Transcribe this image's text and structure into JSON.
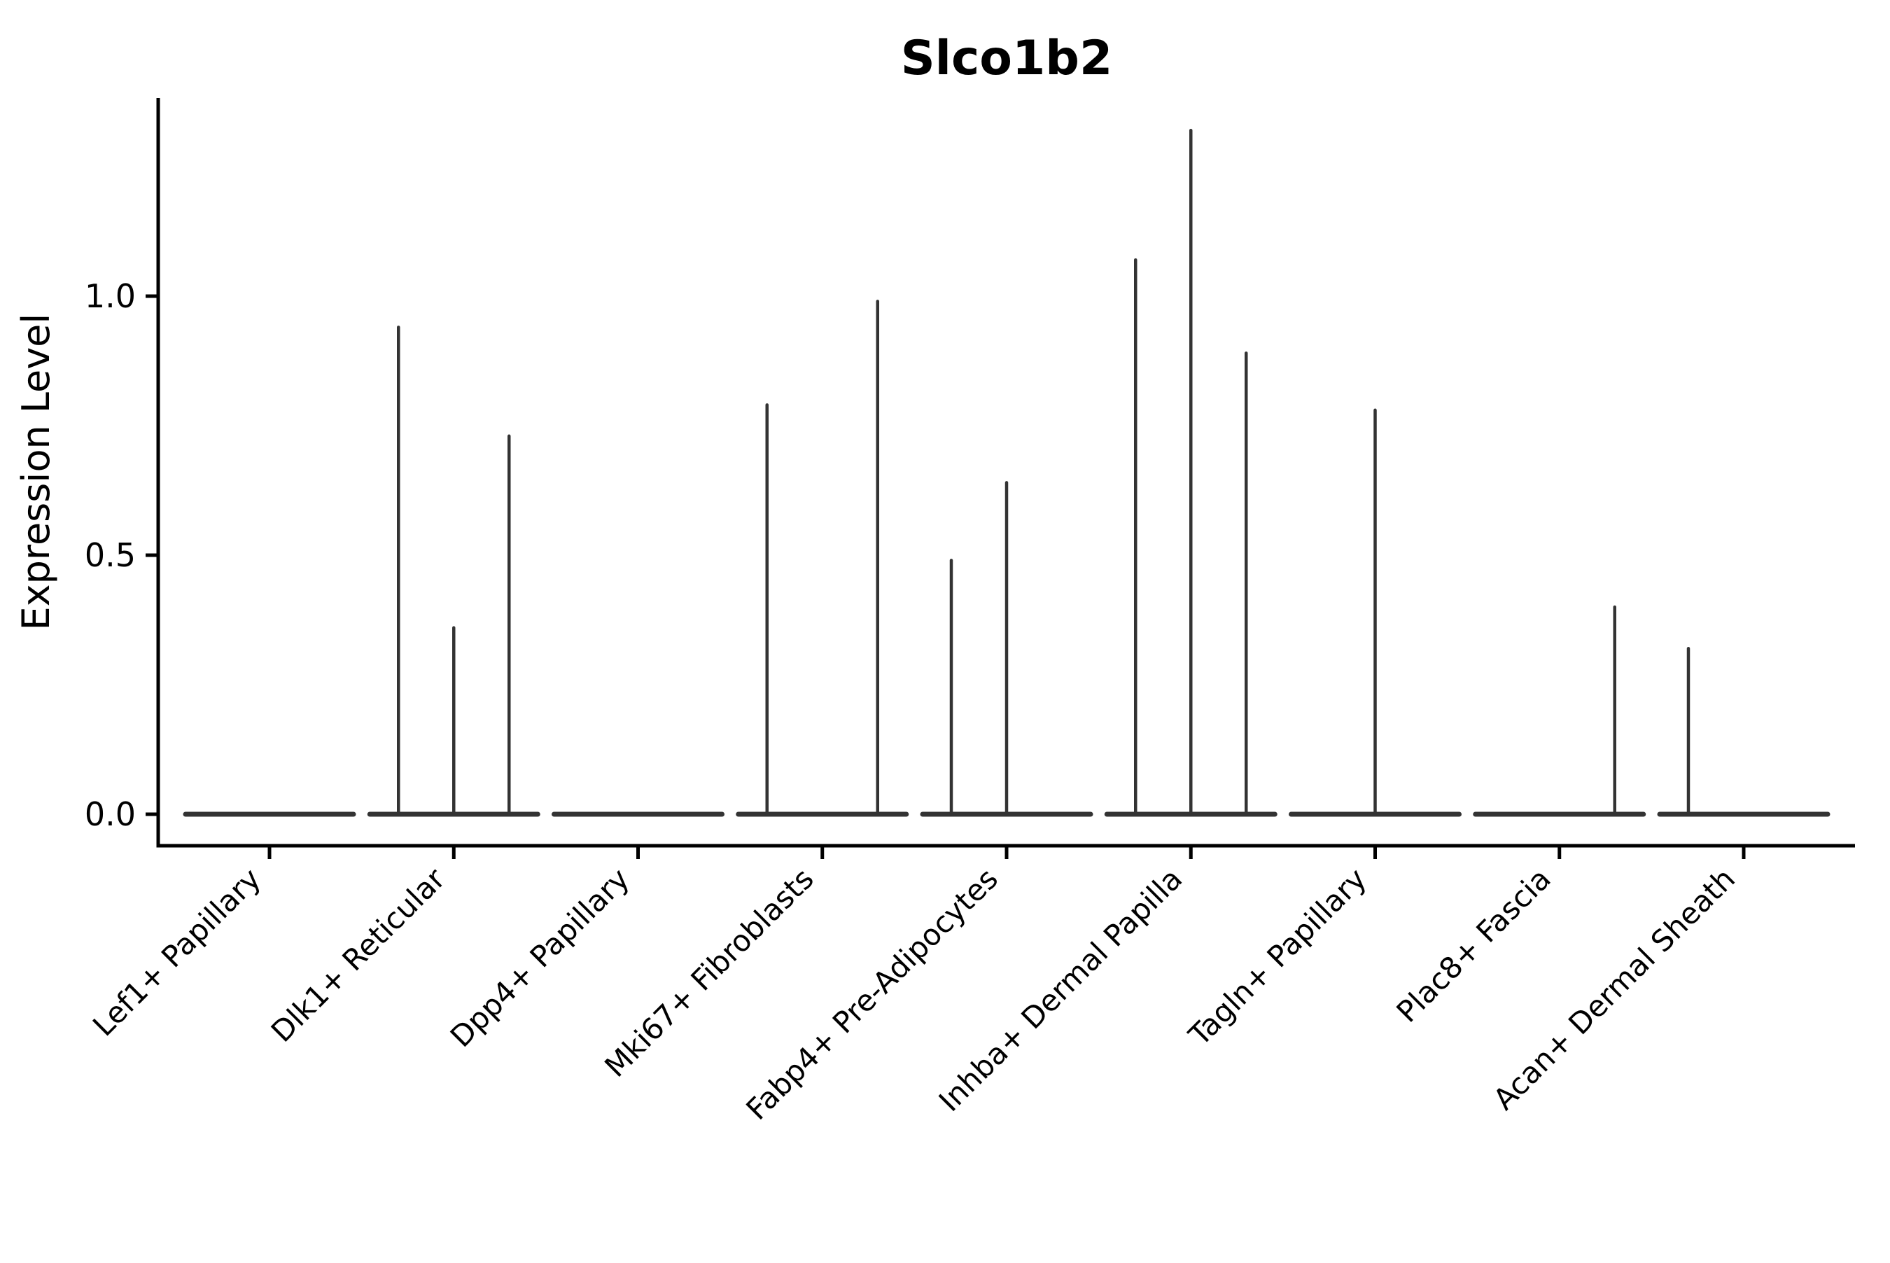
{
  "title": "Slco1b2",
  "chart_data": {
    "type": "violin",
    "title": "Slco1b2",
    "subtitle": "",
    "xlabel": "",
    "ylabel": "Expression Level",
    "grid": false,
    "legend_position": "none",
    "ylim": [
      0,
      1.38
    ],
    "ytick_labels": [
      "0.0",
      "0.5",
      "1.0"
    ],
    "ytick_values": [
      0.0,
      0.5,
      1.0
    ],
    "categories": [
      "Lef1+ Papillary",
      "Dlk1+ Reticular",
      "Dpp4+ Papillary",
      "Mki67+ Fibroblasts",
      "Fabp4+ Pre-Adipocytes",
      "Inhba+ Dermal Papilla",
      "Tagln+ Papillary",
      "Plac8+ Fascia",
      "Acan+ Dermal Sheath"
    ],
    "violins": [
      {
        "category": "Lef1+ Papillary",
        "baseline_value": 0,
        "spikes": []
      },
      {
        "category": "Dlk1+ Reticular",
        "baseline_value": 0,
        "spikes": [
          {
            "slot": -1,
            "value": 0.94
          },
          {
            "slot": 0,
            "value": 0.36
          },
          {
            "slot": 1,
            "value": 0.73
          }
        ]
      },
      {
        "category": "Dpp4+ Papillary",
        "baseline_value": 0,
        "spikes": []
      },
      {
        "category": "Mki67+ Fibroblasts",
        "baseline_value": 0,
        "spikes": [
          {
            "slot": -1,
            "value": 0.79
          },
          {
            "slot": 1,
            "value": 0.99
          }
        ]
      },
      {
        "category": "Fabp4+ Pre-Adipocytes",
        "baseline_value": 0,
        "spikes": [
          {
            "slot": -1,
            "value": 0.49
          },
          {
            "slot": 0,
            "value": 0.64
          }
        ]
      },
      {
        "category": "Inhba+ Dermal Papilla",
        "baseline_value": 0,
        "spikes": [
          {
            "slot": -1,
            "value": 1.07
          },
          {
            "slot": 0,
            "value": 1.32
          },
          {
            "slot": 1,
            "value": 0.89
          }
        ]
      },
      {
        "category": "Tagln+ Papillary",
        "baseline_value": 0,
        "spikes": [
          {
            "slot": 0,
            "value": 0.78
          }
        ]
      },
      {
        "category": "Plac8+ Fascia",
        "baseline_value": 0,
        "spikes": [
          {
            "slot": 1,
            "value": 0.4
          }
        ]
      },
      {
        "category": "Acan+ Dermal Sheath",
        "baseline_value": 0,
        "spikes": [
          {
            "slot": -1,
            "value": 0.32
          }
        ]
      }
    ],
    "colors": {
      "axis": "#000000",
      "violin_line": "#333333",
      "text": "#000000",
      "background": "#ffffff"
    }
  }
}
